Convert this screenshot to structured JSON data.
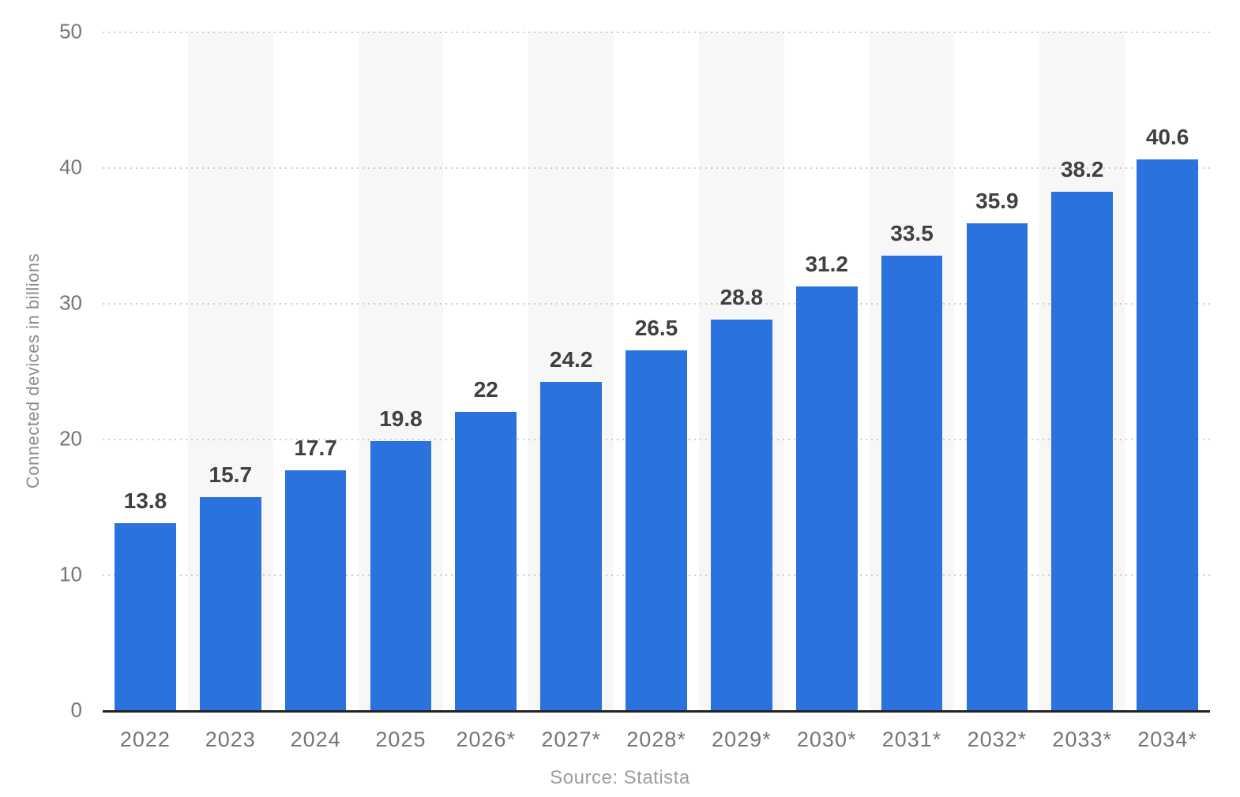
{
  "chart_data": {
    "type": "bar",
    "categories": [
      "2022",
      "2023",
      "2024",
      "2025",
      "2026*",
      "2027*",
      "2028*",
      "2029*",
      "2030*",
      "2031*",
      "2032*",
      "2033*",
      "2034*"
    ],
    "values": [
      13.8,
      15.7,
      17.7,
      19.8,
      22,
      24.2,
      26.5,
      28.8,
      31.2,
      33.5,
      35.9,
      38.2,
      40.6
    ],
    "value_labels": [
      "13.8",
      "15.7",
      "17.7",
      "19.8",
      "22",
      "24.2",
      "26.5",
      "28.8",
      "31.2",
      "33.5",
      "35.9",
      "38.2",
      "40.6"
    ],
    "title": "",
    "xlabel": "",
    "ylabel": "Connected devices in billions",
    "ylim": [
      0,
      50
    ],
    "yticks": [
      0,
      10,
      20,
      30,
      40,
      50
    ],
    "grid": "horizontal dotted",
    "legend": "none",
    "banded_columns": "alternating from second column",
    "colors": {
      "bar": "#2a72dd",
      "band": "#f7f7f7",
      "value_label": "#404040",
      "tick_label": "#757575",
      "y_title": "#8c8c8c",
      "gridline": "#cccccc",
      "axis_line": "#222222",
      "source": "#9e9e9e"
    }
  },
  "footer": {
    "source": "Source: Statista"
  }
}
